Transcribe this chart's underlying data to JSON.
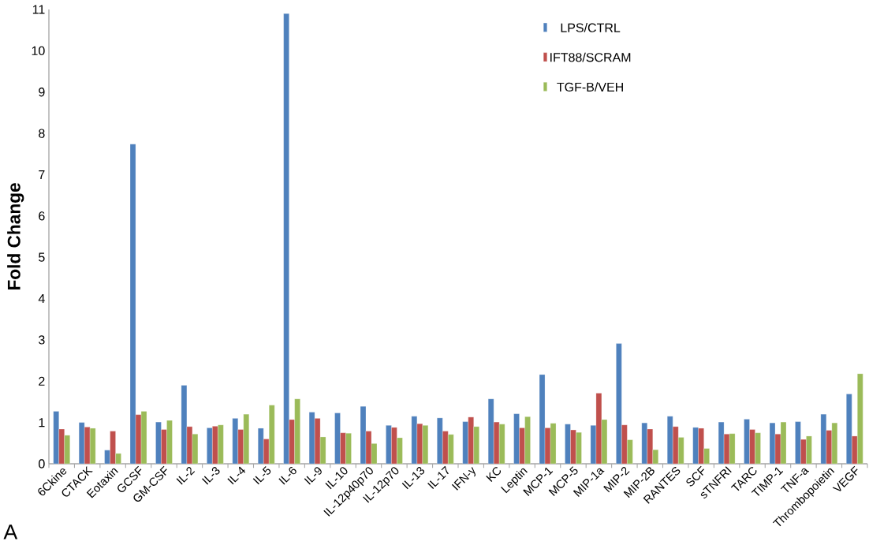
{
  "chart_data": {
    "type": "bar",
    "ylabel": "Fold Change",
    "categories": [
      "6Ckine",
      "CTACK",
      "Eotaxin",
      "GCSF",
      "GM-CSF",
      "IL-2",
      "IL-3",
      "IL-4",
      "IL-5",
      "IL-6",
      "IL-9",
      "IL-10",
      "IL-12p40p70",
      "IL-12p70",
      "IL-13",
      "IL-17",
      "IFN-y",
      "KC",
      "Leptin",
      "MCP-1",
      "MCP-5",
      "MIP-1a",
      "MIP-2",
      "MIP-2B",
      "RANTES",
      "SCF",
      "sTNFRI",
      "TARC",
      "TIMP-1",
      "TNF-a",
      "Thrombopoietin",
      "VEGF"
    ],
    "series": [
      {
        "name": "LPS/CTRL",
        "color": "#4f81bd",
        "values": [
          1.27,
          1.0,
          0.33,
          7.74,
          1.01,
          1.9,
          0.87,
          1.1,
          0.86,
          10.9,
          1.25,
          1.23,
          1.39,
          0.93,
          1.15,
          1.11,
          1.02,
          1.57,
          1.21,
          2.16,
          0.96,
          0.93,
          2.91,
          0.99,
          1.15,
          0.88,
          1.01,
          1.08,
          0.99,
          1.02,
          1.2,
          1.69
        ]
      },
      {
        "name": "IFT88/SCRAM",
        "color": "#c0504d",
        "values": [
          0.84,
          0.89,
          0.79,
          1.19,
          0.83,
          0.9,
          0.91,
          0.83,
          0.6,
          1.07,
          1.1,
          0.75,
          0.79,
          0.88,
          0.97,
          0.79,
          1.13,
          1.01,
          0.87,
          0.87,
          0.82,
          1.71,
          0.94,
          0.84,
          0.9,
          0.86,
          0.72,
          0.83,
          0.72,
          0.59,
          0.81,
          0.67
        ]
      },
      {
        "name": "TGF-B/VEH",
        "color": "#9bbb59",
        "values": [
          0.69,
          0.86,
          0.25,
          1.27,
          1.05,
          0.72,
          0.94,
          1.2,
          1.42,
          1.57,
          0.65,
          0.74,
          0.49,
          0.63,
          0.93,
          0.71,
          0.9,
          0.96,
          1.14,
          0.98,
          0.76,
          1.07,
          0.58,
          0.34,
          0.64,
          0.37,
          0.73,
          0.75,
          1.01,
          0.67,
          0.99,
          2.18
        ]
      }
    ],
    "ylim": [
      0,
      11
    ],
    "yticks": [
      0,
      1,
      2,
      3,
      4,
      5,
      6,
      7,
      8,
      9,
      10,
      11
    ],
    "grid": false,
    "legend": "top right",
    "annotations": [
      "A"
    ]
  }
}
